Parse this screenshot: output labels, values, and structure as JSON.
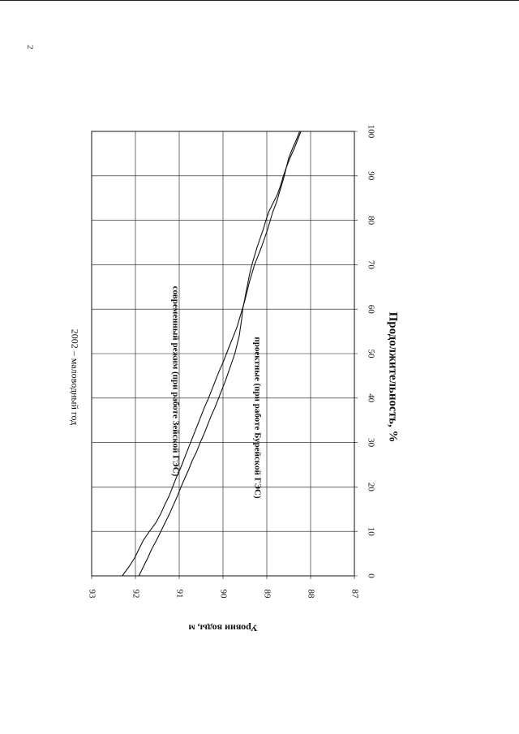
{
  "page_number": "2",
  "chart_data": {
    "type": "line",
    "title": "2002 – маловодный год",
    "xlabel": "Продолжительность, %",
    "ylabel": "Уровни воды, м",
    "xlim": [
      0,
      100
    ],
    "ylim": [
      87,
      93
    ],
    "x_ticks": [
      "0",
      "10",
      "20",
      "30",
      "40",
      "50",
      "60",
      "70",
      "80",
      "90",
      "100"
    ],
    "y_ticks": [
      "87",
      "88",
      "89",
      "90",
      "91",
      "92",
      "93"
    ],
    "grid": true,
    "series": [
      {
        "name": "современный режим (при работе Зейской ГЭС)",
        "points": [
          [
            0,
            92.3
          ],
          [
            2,
            92.15
          ],
          [
            4,
            92.02
          ],
          [
            6,
            91.92
          ],
          [
            8,
            91.82
          ],
          [
            10,
            91.68
          ],
          [
            12,
            91.53
          ],
          [
            14,
            91.42
          ],
          [
            16,
            91.33
          ],
          [
            18,
            91.23
          ],
          [
            20,
            91.15
          ],
          [
            22,
            91.07
          ],
          [
            24,
            90.98
          ],
          [
            26,
            90.9
          ],
          [
            28,
            90.82
          ],
          [
            30,
            90.74
          ],
          [
            32,
            90.66
          ],
          [
            34,
            90.58
          ],
          [
            36,
            90.5
          ],
          [
            38,
            90.42
          ],
          [
            40,
            90.33
          ],
          [
            42,
            90.25
          ],
          [
            44,
            90.17
          ],
          [
            46,
            90.09
          ],
          [
            48,
            90.0
          ],
          [
            50,
            89.92
          ],
          [
            52,
            89.84
          ],
          [
            54,
            89.76
          ],
          [
            56,
            89.68
          ],
          [
            58,
            89.62
          ],
          [
            60,
            89.56
          ],
          [
            62,
            89.5
          ],
          [
            64,
            89.45
          ],
          [
            66,
            89.4
          ],
          [
            68,
            89.34
          ],
          [
            70,
            89.28
          ],
          [
            72,
            89.2
          ],
          [
            74,
            89.12
          ],
          [
            76,
            89.05
          ],
          [
            78,
            88.98
          ],
          [
            80,
            88.92
          ],
          [
            82,
            88.86
          ],
          [
            84,
            88.78
          ],
          [
            86,
            88.72
          ],
          [
            88,
            88.66
          ],
          [
            90,
            88.6
          ],
          [
            92,
            88.55
          ],
          [
            94,
            88.5
          ],
          [
            96,
            88.42
          ],
          [
            98,
            88.33
          ],
          [
            100,
            88.25
          ]
        ]
      },
      {
        "name": "проектные (при работе Бурейской ГЭС)",
        "points": [
          [
            0,
            91.92
          ],
          [
            2,
            91.82
          ],
          [
            4,
            91.72
          ],
          [
            6,
            91.63
          ],
          [
            8,
            91.52
          ],
          [
            10,
            91.42
          ],
          [
            12,
            91.32
          ],
          [
            14,
            91.22
          ],
          [
            16,
            91.13
          ],
          [
            18,
            91.04
          ],
          [
            20,
            90.96
          ],
          [
            22,
            90.87
          ],
          [
            24,
            90.78
          ],
          [
            26,
            90.7
          ],
          [
            28,
            90.6
          ],
          [
            30,
            90.52
          ],
          [
            32,
            90.43
          ],
          [
            34,
            90.35
          ],
          [
            36,
            90.27
          ],
          [
            38,
            90.18
          ],
          [
            40,
            90.1
          ],
          [
            42,
            90.02
          ],
          [
            44,
            89.94
          ],
          [
            46,
            89.87
          ],
          [
            48,
            89.8
          ],
          [
            50,
            89.73
          ],
          [
            52,
            89.68
          ],
          [
            54,
            89.63
          ],
          [
            56,
            89.6
          ],
          [
            58,
            89.57
          ],
          [
            60,
            89.55
          ],
          [
            62,
            89.51
          ],
          [
            64,
            89.47
          ],
          [
            66,
            89.43
          ],
          [
            68,
            89.39
          ],
          [
            70,
            89.34
          ],
          [
            72,
            89.28
          ],
          [
            74,
            89.22
          ],
          [
            76,
            89.15
          ],
          [
            78,
            89.08
          ],
          [
            80,
            89.02
          ],
          [
            82,
            88.95
          ],
          [
            84,
            88.85
          ],
          [
            86,
            88.75
          ],
          [
            88,
            88.68
          ],
          [
            90,
            88.62
          ],
          [
            92,
            88.55
          ],
          [
            94,
            88.47
          ],
          [
            96,
            88.38
          ],
          [
            98,
            88.3
          ],
          [
            100,
            88.22
          ]
        ]
      }
    ]
  }
}
